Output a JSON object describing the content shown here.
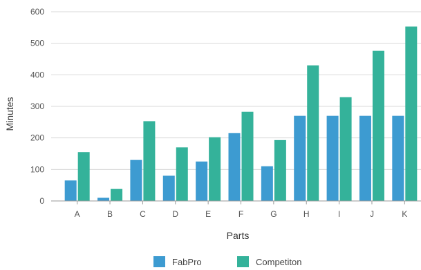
{
  "chart_data": {
    "type": "bar",
    "title": "",
    "xlabel": "Parts",
    "ylabel": "Minutes",
    "categories": [
      "A",
      "B",
      "C",
      "D",
      "E",
      "F",
      "G",
      "H",
      "I",
      "J",
      "K"
    ],
    "series": [
      {
        "name": "FabPro",
        "color": "#3d9bd1",
        "values": [
          65,
          10,
          130,
          80,
          125,
          215,
          110,
          270,
          270,
          270,
          270
        ]
      },
      {
        "name": "Competiton",
        "color": "#34b29a",
        "values": [
          155,
          38,
          253,
          170,
          202,
          283,
          193,
          430,
          329,
          476,
          553
        ]
      }
    ],
    "ylim": [
      0,
      600
    ],
    "yticks": [
      0,
      100,
      200,
      300,
      400,
      500,
      600
    ],
    "grid": true,
    "legend_position": "bottom"
  }
}
